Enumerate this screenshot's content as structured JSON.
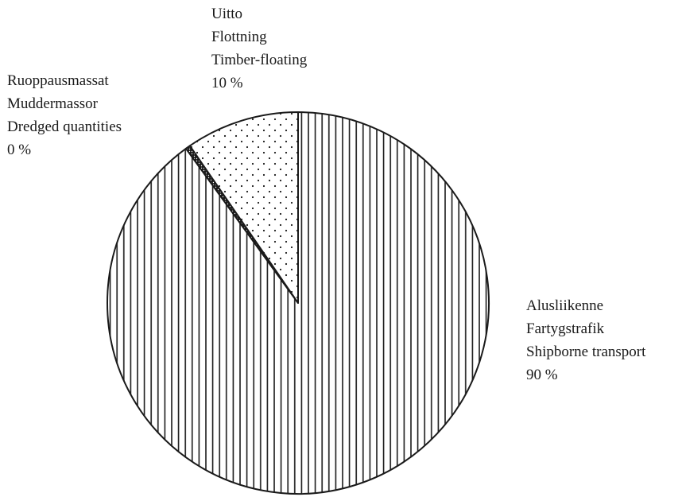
{
  "chart_data": {
    "type": "pie",
    "title": "",
    "start_angle_deg": 0,
    "direction": "clockwise",
    "slices": [
      {
        "key": "shipborne",
        "value": 90,
        "pattern": "vertical-lines",
        "label_lines": [
          "Alusliikenne",
          "Fartygstrafik",
          "Shipborne transport",
          "90 %"
        ]
      },
      {
        "key": "dredged",
        "value": 0.4,
        "pattern": "fine-dots",
        "label_lines": [
          "Ruoppausmassat",
          "Muddermassor",
          "Dredged quantities",
          "0 %"
        ]
      },
      {
        "key": "timber",
        "value": 9.6,
        "pattern": "dots",
        "label_lines": [
          "Uitto",
          "Flottning",
          "Timber-floating",
          "10 %"
        ]
      }
    ],
    "colors": {
      "line": "#1a1a1a",
      "background": "#ffffff"
    }
  }
}
